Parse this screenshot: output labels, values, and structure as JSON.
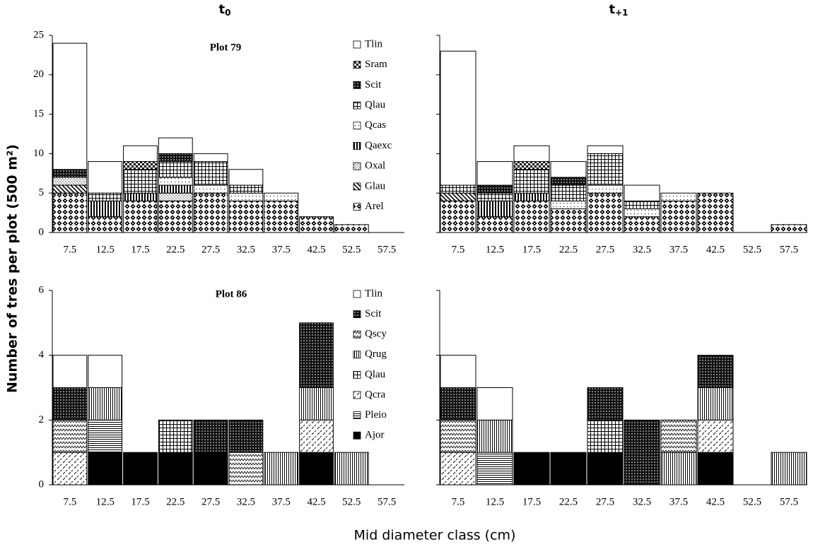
{
  "ylabel": "Number of tres per plot (500 m²)",
  "xlabel": "Mid diameter class (cm)",
  "chart_data": [
    {
      "type": "bar",
      "stacked": true,
      "title": "t",
      "title_sub": "0",
      "annotation": "Plot 79",
      "legend": true,
      "categories": [
        "7.5",
        "12.5",
        "17.5",
        "22.5",
        "27.5",
        "32.5",
        "37.5",
        "42.5",
        "52.5",
        "57.5"
      ],
      "ylim": [
        0,
        25
      ],
      "yticks": [
        0,
        5,
        10,
        15,
        20,
        25
      ],
      "ytick_labels": true,
      "series": [
        {
          "name": "Arel",
          "pattern": "diamonds",
          "values": [
            5,
            2,
            4,
            4,
            5,
            4,
            4,
            2,
            1,
            0
          ]
        },
        {
          "name": "Glau",
          "pattern": "diagonal",
          "values": [
            1,
            0,
            0,
            0,
            0,
            0,
            0,
            0,
            0,
            0
          ]
        },
        {
          "name": "Oxal",
          "pattern": "light-dots",
          "values": [
            1,
            0,
            0,
            1,
            0,
            0,
            0,
            0,
            0,
            0
          ]
        },
        {
          "name": "Qaexc",
          "pattern": "vertical",
          "values": [
            0,
            2,
            1,
            1,
            0,
            0,
            0,
            0,
            0,
            0
          ]
        },
        {
          "name": "Qcas",
          "pattern": "sparse-dots",
          "values": [
            0,
            0,
            0,
            1,
            1,
            1,
            1,
            0,
            0,
            0
          ]
        },
        {
          "name": "Qlau",
          "pattern": "grid",
          "values": [
            0,
            1,
            3,
            2,
            3,
            1,
            0,
            0,
            0,
            0
          ]
        },
        {
          "name": "Scit",
          "pattern": "dark-dots",
          "values": [
            1,
            0,
            0,
            1,
            0,
            0,
            0,
            0,
            0,
            0
          ]
        },
        {
          "name": "Sram",
          "pattern": "checker",
          "values": [
            0,
            0,
            1,
            0,
            0,
            0,
            0,
            0,
            0,
            0
          ]
        },
        {
          "name": "Tlin",
          "pattern": "white",
          "values": [
            16,
            4,
            2,
            2,
            1,
            2,
            0,
            0,
            0,
            0
          ]
        }
      ]
    },
    {
      "type": "bar",
      "stacked": true,
      "title": "t",
      "title_sub": "+1",
      "legend": false,
      "categories": [
        "7.5",
        "12.5",
        "17.5",
        "22.5",
        "27.5",
        "32.5",
        "37.5",
        "42.5",
        "52.5",
        "57.5"
      ],
      "ylim": [
        0,
        25
      ],
      "yticks": [
        0,
        5,
        10,
        15,
        20,
        25
      ],
      "ytick_labels": false,
      "series": [
        {
          "name": "Arel",
          "pattern": "diamonds",
          "values": [
            4,
            2,
            4,
            3,
            5,
            2,
            4,
            5,
            0,
            1
          ]
        },
        {
          "name": "Glau",
          "pattern": "diagonal",
          "values": [
            1,
            0,
            0,
            0,
            0,
            0,
            0,
            0,
            0,
            0
          ]
        },
        {
          "name": "Oxal",
          "pattern": "light-dots",
          "values": [
            0,
            0,
            0,
            0,
            0,
            0,
            0,
            0,
            0,
            0
          ]
        },
        {
          "name": "Qaexc",
          "pattern": "vertical",
          "values": [
            0,
            2,
            1,
            0,
            0,
            0,
            0,
            0,
            0,
            0
          ]
        },
        {
          "name": "Qcas",
          "pattern": "sparse-dots",
          "values": [
            0,
            0,
            0,
            1,
            1,
            1,
            1,
            0,
            0,
            0
          ]
        },
        {
          "name": "Qlau",
          "pattern": "grid",
          "values": [
            1,
            1,
            3,
            2,
            4,
            1,
            0,
            0,
            0,
            0
          ]
        },
        {
          "name": "Scit",
          "pattern": "dark-dots",
          "values": [
            0,
            1,
            0,
            1,
            0,
            0,
            0,
            0,
            0,
            0
          ]
        },
        {
          "name": "Sram",
          "pattern": "checker",
          "values": [
            0,
            0,
            1,
            0,
            0,
            0,
            0,
            0,
            0,
            0
          ]
        },
        {
          "name": "Tlin",
          "pattern": "white",
          "values": [
            17,
            3,
            2,
            2,
            1,
            2,
            0,
            0,
            0,
            0
          ]
        }
      ]
    },
    {
      "type": "bar",
      "stacked": true,
      "annotation": "Plot 86",
      "legend": true,
      "categories": [
        "7.5",
        "12.5",
        "17.5",
        "22.5",
        "27.5",
        "32.5",
        "37.5",
        "42.5",
        "52.5",
        "57.5"
      ],
      "ylim": [
        0,
        6
      ],
      "yticks": [
        0,
        2,
        4,
        6
      ],
      "ytick_labels": true,
      "series": [
        {
          "name": "Ajor",
          "pattern": "black",
          "values": [
            0,
            1,
            1,
            1,
            1,
            0,
            0,
            1,
            0,
            0
          ]
        },
        {
          "name": "Pleio",
          "pattern": "horizontal",
          "values": [
            0,
            1,
            0,
            0,
            0,
            0,
            0,
            0,
            0,
            0
          ]
        },
        {
          "name": "Qcra",
          "pattern": "dashes",
          "values": [
            1,
            0,
            0,
            0,
            0,
            0,
            0,
            1,
            0,
            0
          ]
        },
        {
          "name": "Qlau",
          "pattern": "grid",
          "values": [
            0,
            0,
            0,
            1,
            0,
            0,
            0,
            0,
            0,
            0
          ]
        },
        {
          "name": "Qrug",
          "pattern": "vertical-thin",
          "values": [
            0,
            1,
            0,
            0,
            0,
            0,
            1,
            1,
            1,
            0
          ]
        },
        {
          "name": "Qscy",
          "pattern": "zigzag",
          "values": [
            1,
            0,
            0,
            0,
            0,
            1,
            0,
            0,
            0,
            0
          ]
        },
        {
          "name": "Scit",
          "pattern": "dark-dots",
          "values": [
            1,
            0,
            0,
            0,
            1,
            1,
            0,
            2,
            0,
            0
          ]
        },
        {
          "name": "Tlin",
          "pattern": "white",
          "values": [
            1,
            1,
            0,
            0,
            0,
            0,
            0,
            0,
            0,
            0
          ]
        }
      ]
    },
    {
      "type": "bar",
      "stacked": true,
      "legend": false,
      "categories": [
        "7.5",
        "12.5",
        "17.5",
        "22.5",
        "27.5",
        "32.5",
        "37.5",
        "42.5",
        "52.5",
        "57.5"
      ],
      "ylim": [
        0,
        6
      ],
      "yticks": [
        0,
        2,
        4,
        6
      ],
      "ytick_labels": false,
      "series": [
        {
          "name": "Ajor",
          "pattern": "black",
          "values": [
            0,
            0,
            1,
            1,
            1,
            0,
            0,
            1,
            0,
            0
          ]
        },
        {
          "name": "Pleio",
          "pattern": "horizontal",
          "values": [
            0,
            1,
            0,
            0,
            0,
            0,
            0,
            0,
            0,
            0
          ]
        },
        {
          "name": "Qcra",
          "pattern": "dashes",
          "values": [
            1,
            0,
            0,
            0,
            0,
            0,
            0,
            1,
            0,
            0
          ]
        },
        {
          "name": "Qlau",
          "pattern": "grid",
          "values": [
            0,
            0,
            0,
            0,
            1,
            0,
            0,
            0,
            0,
            0
          ]
        },
        {
          "name": "Qrug",
          "pattern": "vertical-thin",
          "values": [
            0,
            1,
            0,
            0,
            0,
            0,
            1,
            1,
            0,
            1
          ]
        },
        {
          "name": "Qscy",
          "pattern": "zigzag",
          "values": [
            1,
            0,
            0,
            0,
            0,
            0,
            1,
            0,
            0,
            0
          ]
        },
        {
          "name": "Scit",
          "pattern": "dark-dots",
          "values": [
            1,
            0,
            0,
            0,
            1,
            2,
            0,
            1,
            0,
            0
          ]
        },
        {
          "name": "Tlin",
          "pattern": "white",
          "values": [
            1,
            1,
            0,
            0,
            0,
            0,
            0,
            0,
            0,
            0
          ]
        }
      ]
    }
  ]
}
